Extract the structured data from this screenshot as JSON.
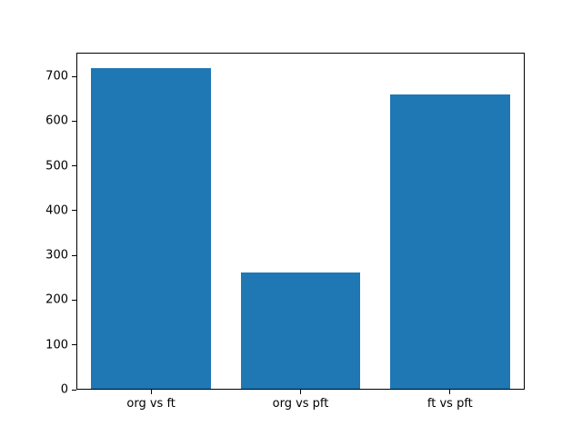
{
  "figure": {
    "background": "#ffffff",
    "frame_color": "#000000",
    "text_color": "#000000"
  },
  "chart_data": {
    "type": "bar",
    "title": "",
    "xlabel": "",
    "ylabel": "",
    "categories": [
      "org vs ft",
      "org vs pft",
      "ft vs pft"
    ],
    "values": [
      718,
      262,
      660
    ],
    "bar_color": "#1f77b4",
    "yticks": [
      0,
      100,
      200,
      300,
      400,
      500,
      600,
      700
    ],
    "ylim": [
      0,
      753
    ],
    "grid": false,
    "legend": null
  }
}
